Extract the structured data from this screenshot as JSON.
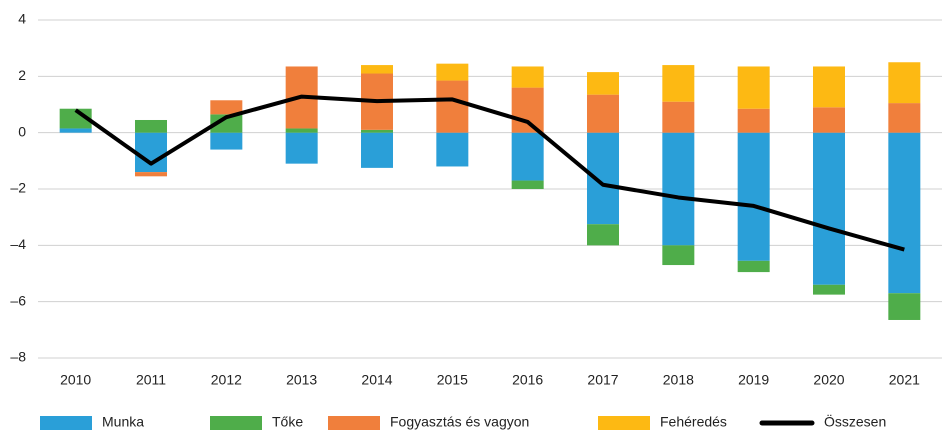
{
  "chart_data": {
    "type": "bar",
    "stacked": true,
    "categories": [
      "2010",
      "2011",
      "2012",
      "2013",
      "2014",
      "2015",
      "2016",
      "2017",
      "2018",
      "2019",
      "2020",
      "2021"
    ],
    "series": [
      {
        "name": "Munka",
        "color": "#2a9fd8",
        "values": [
          0.15,
          -1.4,
          -0.6,
          -1.1,
          -1.25,
          -1.2,
          -1.7,
          -3.25,
          -4.0,
          -4.55,
          -5.4,
          -5.7
        ]
      },
      {
        "name": "Tőke",
        "color": "#4fad4a",
        "values": [
          0.7,
          0.45,
          0.65,
          0.15,
          0.1,
          0.0,
          -0.3,
          -0.75,
          -0.7,
          -0.4,
          -0.35,
          -0.95
        ]
      },
      {
        "name": "Fogyasztás és vagyon",
        "color": "#f07f3c",
        "values": [
          0.0,
          -0.15,
          0.5,
          2.2,
          2.0,
          1.85,
          1.6,
          1.35,
          1.1,
          0.85,
          0.9,
          1.05
        ]
      },
      {
        "name": "Fehéredés",
        "color": "#fdb913",
        "values": [
          0.0,
          0.0,
          0.0,
          0.0,
          0.3,
          0.6,
          0.75,
          0.8,
          1.3,
          1.5,
          1.45,
          1.45
        ]
      },
      {
        "name": "Összesen",
        "color": "#000000",
        "type": "line",
        "values": [
          0.8,
          -1.1,
          0.55,
          1.28,
          1.12,
          1.18,
          0.38,
          -1.85,
          -2.3,
          -2.6,
          -3.4,
          -4.15
        ]
      }
    ],
    "ylim": [
      -8,
      4
    ],
    "yticks": [
      {
        "value": -8,
        "label": "–8"
      },
      {
        "value": -6,
        "label": "–6"
      },
      {
        "value": -4,
        "label": "–4"
      },
      {
        "value": -2,
        "label": "–2"
      },
      0,
      2,
      4
    ],
    "grid": true,
    "legend": "bottom"
  }
}
